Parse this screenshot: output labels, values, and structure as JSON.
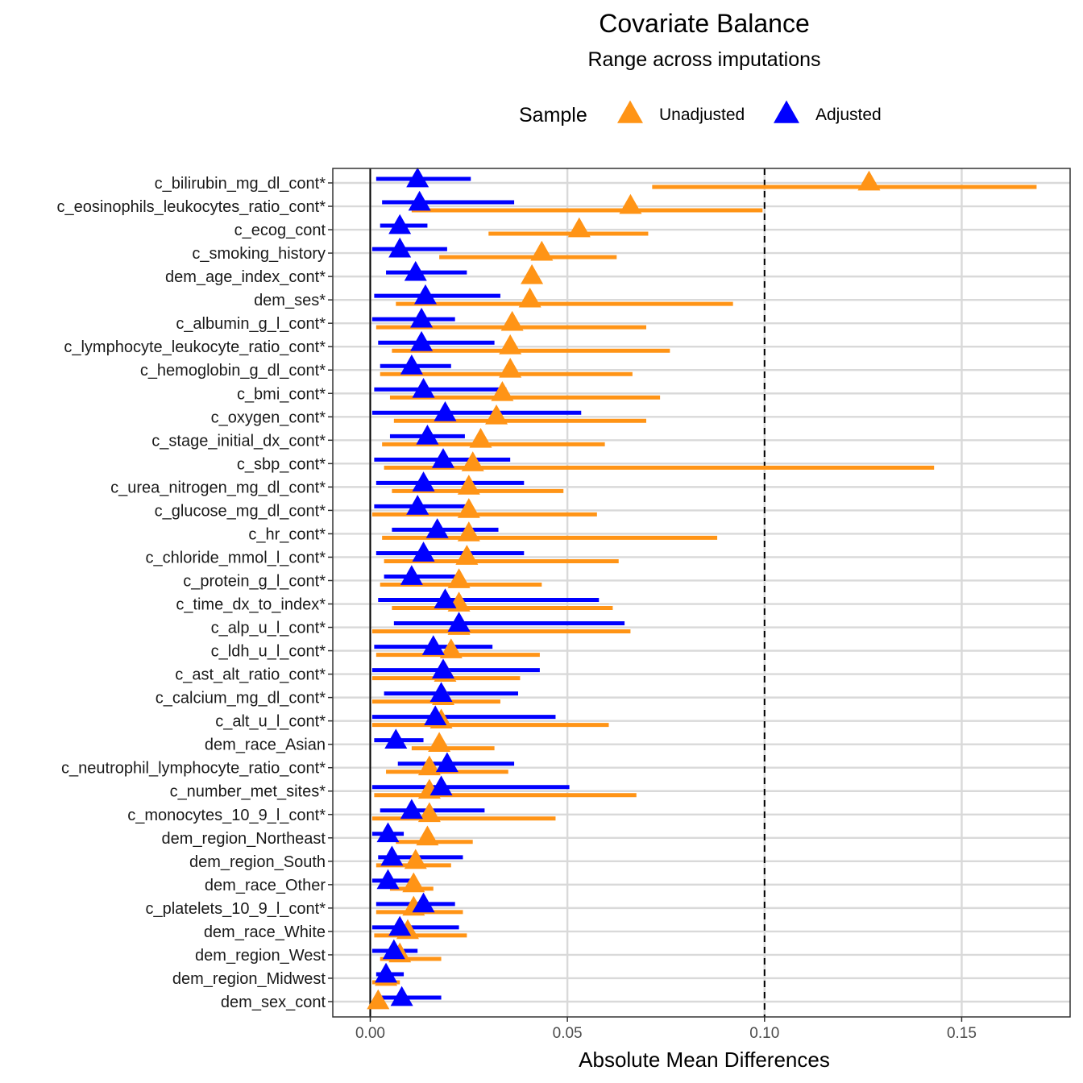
{
  "chart_data": {
    "type": "dot-range",
    "title": "Covariate Balance",
    "subtitle": "Range across imputations",
    "xlabel": "Absolute Mean Differences",
    "xlim": [
      -0.0095,
      0.1775
    ],
    "x_ticks": [
      0.0,
      0.05,
      0.1,
      0.15
    ],
    "x_tick_labels": [
      "0.00",
      "0.05",
      "0.10",
      "0.15"
    ],
    "reference_lines": {
      "solid": 0.0,
      "dashed": 0.1
    },
    "grid": true,
    "legend": {
      "title": "Sample",
      "position": "top",
      "entries": [
        {
          "name": "Unadjusted",
          "color": "#FF9416"
        },
        {
          "name": "Adjusted",
          "color": "#0000FF"
        }
      ]
    },
    "colors": {
      "Unadjusted": "#FF9416",
      "Adjusted": "#0000FF"
    },
    "covariates": [
      {
        "name": "c_bilirubin_mg_dl_cont*",
        "unadjusted": {
          "point": 0.1265,
          "low": 0.0715,
          "high": 0.169
        },
        "adjusted": {
          "point": 0.012,
          "low": 0.0015,
          "high": 0.0255
        }
      },
      {
        "name": "c_eosinophils_leukocytes_ratio_cont*",
        "unadjusted": {
          "point": 0.066,
          "low": 0.0105,
          "high": 0.0995
        },
        "adjusted": {
          "point": 0.0125,
          "low": 0.003,
          "high": 0.0365
        }
      },
      {
        "name": "c_ecog_cont",
        "unadjusted": {
          "point": 0.053,
          "low": 0.03,
          "high": 0.0705
        },
        "adjusted": {
          "point": 0.0075,
          "low": 0.0025,
          "high": 0.0145
        }
      },
      {
        "name": "c_smoking_history",
        "unadjusted": {
          "point": 0.0435,
          "low": 0.0175,
          "high": 0.0625
        },
        "adjusted": {
          "point": 0.0075,
          "low": 0.0005,
          "high": 0.0195
        }
      },
      {
        "name": "dem_age_index_cont*",
        "unadjusted": {
          "point": 0.041,
          "low": 0.0395,
          "high": 0.0425
        },
        "adjusted": {
          "point": 0.0115,
          "low": 0.004,
          "high": 0.0245
        }
      },
      {
        "name": "dem_ses*",
        "unadjusted": {
          "point": 0.0405,
          "low": 0.0065,
          "high": 0.092
        },
        "adjusted": {
          "point": 0.014,
          "low": 0.001,
          "high": 0.033
        }
      },
      {
        "name": "c_albumin_g_l_cont*",
        "unadjusted": {
          "point": 0.036,
          "low": 0.0015,
          "high": 0.07
        },
        "adjusted": {
          "point": 0.013,
          "low": 0.0005,
          "high": 0.0215
        }
      },
      {
        "name": "c_lymphocyte_leukocyte_ratio_cont*",
        "unadjusted": {
          "point": 0.0355,
          "low": 0.0055,
          "high": 0.076
        },
        "adjusted": {
          "point": 0.013,
          "low": 0.002,
          "high": 0.0315
        }
      },
      {
        "name": "c_hemoglobin_g_dl_cont*",
        "unadjusted": {
          "point": 0.0355,
          "low": 0.0025,
          "high": 0.0665
        },
        "adjusted": {
          "point": 0.0105,
          "low": 0.0025,
          "high": 0.0205
        }
      },
      {
        "name": "c_bmi_cont*",
        "unadjusted": {
          "point": 0.0335,
          "low": 0.005,
          "high": 0.0735
        },
        "adjusted": {
          "point": 0.0135,
          "low": 0.001,
          "high": 0.0345
        }
      },
      {
        "name": "c_oxygen_cont*",
        "unadjusted": {
          "point": 0.032,
          "low": 0.006,
          "high": 0.07
        },
        "adjusted": {
          "point": 0.019,
          "low": 0.0005,
          "high": 0.0535
        }
      },
      {
        "name": "c_stage_initial_dx_cont*",
        "unadjusted": {
          "point": 0.028,
          "low": 0.003,
          "high": 0.0595
        },
        "adjusted": {
          "point": 0.0145,
          "low": 0.005,
          "high": 0.024
        }
      },
      {
        "name": "c_sbp_cont*",
        "unadjusted": {
          "point": 0.026,
          "low": 0.0035,
          "high": 0.143
        },
        "adjusted": {
          "point": 0.0185,
          "low": 0.001,
          "high": 0.0355
        }
      },
      {
        "name": "c_urea_nitrogen_mg_dl_cont*",
        "unadjusted": {
          "point": 0.025,
          "low": 0.0055,
          "high": 0.049
        },
        "adjusted": {
          "point": 0.0135,
          "low": 0.0015,
          "high": 0.039
        }
      },
      {
        "name": "c_glucose_mg_dl_cont*",
        "unadjusted": {
          "point": 0.025,
          "low": 0.0005,
          "high": 0.0575
        },
        "adjusted": {
          "point": 0.012,
          "low": 0.001,
          "high": 0.0245
        }
      },
      {
        "name": "c_hr_cont*",
        "unadjusted": {
          "point": 0.025,
          "low": 0.003,
          "high": 0.088
        },
        "adjusted": {
          "point": 0.017,
          "low": 0.0055,
          "high": 0.0325
        }
      },
      {
        "name": "c_chloride_mmol_l_cont*",
        "unadjusted": {
          "point": 0.0245,
          "low": 0.0035,
          "high": 0.063
        },
        "adjusted": {
          "point": 0.0135,
          "low": 0.0015,
          "high": 0.039
        }
      },
      {
        "name": "c_protein_g_l_cont*",
        "unadjusted": {
          "point": 0.0225,
          "low": 0.0025,
          "high": 0.0435
        },
        "adjusted": {
          "point": 0.0105,
          "low": 0.0035,
          "high": 0.0225
        }
      },
      {
        "name": "c_time_dx_to_index*",
        "unadjusted": {
          "point": 0.0225,
          "low": 0.0055,
          "high": 0.0615
        },
        "adjusted": {
          "point": 0.019,
          "low": 0.002,
          "high": 0.058
        }
      },
      {
        "name": "c_alp_u_l_cont*",
        "unadjusted": {
          "point": 0.0225,
          "low": 0.0005,
          "high": 0.066
        },
        "adjusted": {
          "point": 0.0225,
          "low": 0.006,
          "high": 0.0645
        }
      },
      {
        "name": "c_ldh_u_l_cont*",
        "unadjusted": {
          "point": 0.0205,
          "low": 0.0015,
          "high": 0.043
        },
        "adjusted": {
          "point": 0.016,
          "low": 0.001,
          "high": 0.031
        }
      },
      {
        "name": "c_ast_alt_ratio_cont*",
        "unadjusted": {
          "point": 0.019,
          "low": 0.0005,
          "high": 0.038
        },
        "adjusted": {
          "point": 0.0185,
          "low": 0.0005,
          "high": 0.043
        }
      },
      {
        "name": "c_calcium_mg_dl_cont*",
        "unadjusted": {
          "point": 0.0185,
          "low": 0.0005,
          "high": 0.033
        },
        "adjusted": {
          "point": 0.018,
          "low": 0.0035,
          "high": 0.0375
        }
      },
      {
        "name": "c_alt_u_l_cont*",
        "unadjusted": {
          "point": 0.018,
          "low": 0.0005,
          "high": 0.0605
        },
        "adjusted": {
          "point": 0.0165,
          "low": 0.0005,
          "high": 0.047
        }
      },
      {
        "name": "dem_race_Asian",
        "unadjusted": {
          "point": 0.0175,
          "low": 0.0105,
          "high": 0.0315
        },
        "adjusted": {
          "point": 0.0065,
          "low": 0.001,
          "high": 0.0135
        }
      },
      {
        "name": "c_neutrophil_lymphocyte_ratio_cont*",
        "unadjusted": {
          "point": 0.015,
          "low": 0.004,
          "high": 0.035
        },
        "adjusted": {
          "point": 0.0195,
          "low": 0.007,
          "high": 0.0365
        }
      },
      {
        "name": "c_number_met_sites*",
        "unadjusted": {
          "point": 0.015,
          "low": 0.001,
          "high": 0.0675
        },
        "adjusted": {
          "point": 0.018,
          "low": 0.0005,
          "high": 0.0505
        }
      },
      {
        "name": "c_monocytes_10_9_l_cont*",
        "unadjusted": {
          "point": 0.015,
          "low": 0.0005,
          "high": 0.047
        },
        "adjusted": {
          "point": 0.0105,
          "low": 0.0025,
          "high": 0.029
        }
      },
      {
        "name": "dem_region_Northeast",
        "unadjusted": {
          "point": 0.0145,
          "low": 0.0065,
          "high": 0.026
        },
        "adjusted": {
          "point": 0.0045,
          "low": 0.0005,
          "high": 0.0085
        }
      },
      {
        "name": "dem_region_South",
        "unadjusted": {
          "point": 0.0115,
          "low": 0.0015,
          "high": 0.0205
        },
        "adjusted": {
          "point": 0.0055,
          "low": 0.002,
          "high": 0.0235
        }
      },
      {
        "name": "dem_race_Other",
        "unadjusted": {
          "point": 0.011,
          "low": 0.005,
          "high": 0.016
        },
        "adjusted": {
          "point": 0.0045,
          "low": 0.0005,
          "high": 0.0105
        }
      },
      {
        "name": "c_platelets_10_9_l_cont*",
        "unadjusted": {
          "point": 0.011,
          "low": 0.0015,
          "high": 0.0235
        },
        "adjusted": {
          "point": 0.0135,
          "low": 0.0015,
          "high": 0.0215
        }
      },
      {
        "name": "dem_race_White",
        "unadjusted": {
          "point": 0.0095,
          "low": 0.001,
          "high": 0.0245
        },
        "adjusted": {
          "point": 0.0075,
          "low": 0.0005,
          "high": 0.0225
        }
      },
      {
        "name": "dem_region_West",
        "unadjusted": {
          "point": 0.0075,
          "low": 0.0025,
          "high": 0.018
        },
        "adjusted": {
          "point": 0.006,
          "low": 0.0005,
          "high": 0.012
        }
      },
      {
        "name": "dem_region_Midwest",
        "unadjusted": {
          "point": 0.004,
          "low": 0.0005,
          "high": 0.0075
        },
        "adjusted": {
          "point": 0.004,
          "low": 0.0015,
          "high": 0.0085
        }
      },
      {
        "name": "dem_sex_cont",
        "unadjusted": {
          "point": 0.002,
          "low": 0.0005,
          "high": 0.003
        },
        "adjusted": {
          "point": 0.008,
          "low": 0.0015,
          "high": 0.018
        }
      }
    ]
  }
}
